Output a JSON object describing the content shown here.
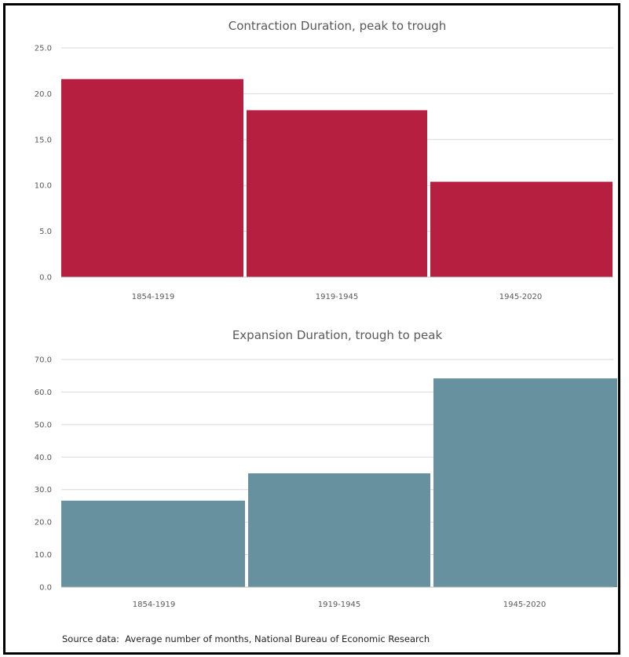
{
  "chart_data": [
    {
      "type": "bar",
      "title": "Contraction Duration, peak to trough",
      "categories": [
        "1854-1919",
        "1919-1945",
        "1945-2020"
      ],
      "values": [
        21.6,
        18.2,
        10.4
      ],
      "ylim": [
        0,
        25
      ],
      "yticks": [
        0,
        5,
        10,
        15,
        20,
        25
      ],
      "ytick_labels": [
        "0.0",
        "5.0",
        "10.0",
        "15.0",
        "20.0",
        "25.0"
      ],
      "grid": true,
      "color": "#b71f40"
    },
    {
      "type": "bar",
      "title": "Expansion Duration, trough to peak",
      "categories": [
        "1854-1919",
        "1919-1945",
        "1945-2020"
      ],
      "values": [
        26.6,
        35.0,
        64.2
      ],
      "ylim": [
        0,
        70
      ],
      "yticks": [
        0,
        10,
        20,
        30,
        40,
        50,
        60,
        70
      ],
      "ytick_labels": [
        "0.0",
        "10.0",
        "20.0",
        "30.0",
        "40.0",
        "50.0",
        "60.0",
        "70.0"
      ],
      "grid": true,
      "color": "#6891a0"
    }
  ],
  "footer": {
    "source_note": "Source data:  Average number of months, National Bureau of Economic Research"
  }
}
